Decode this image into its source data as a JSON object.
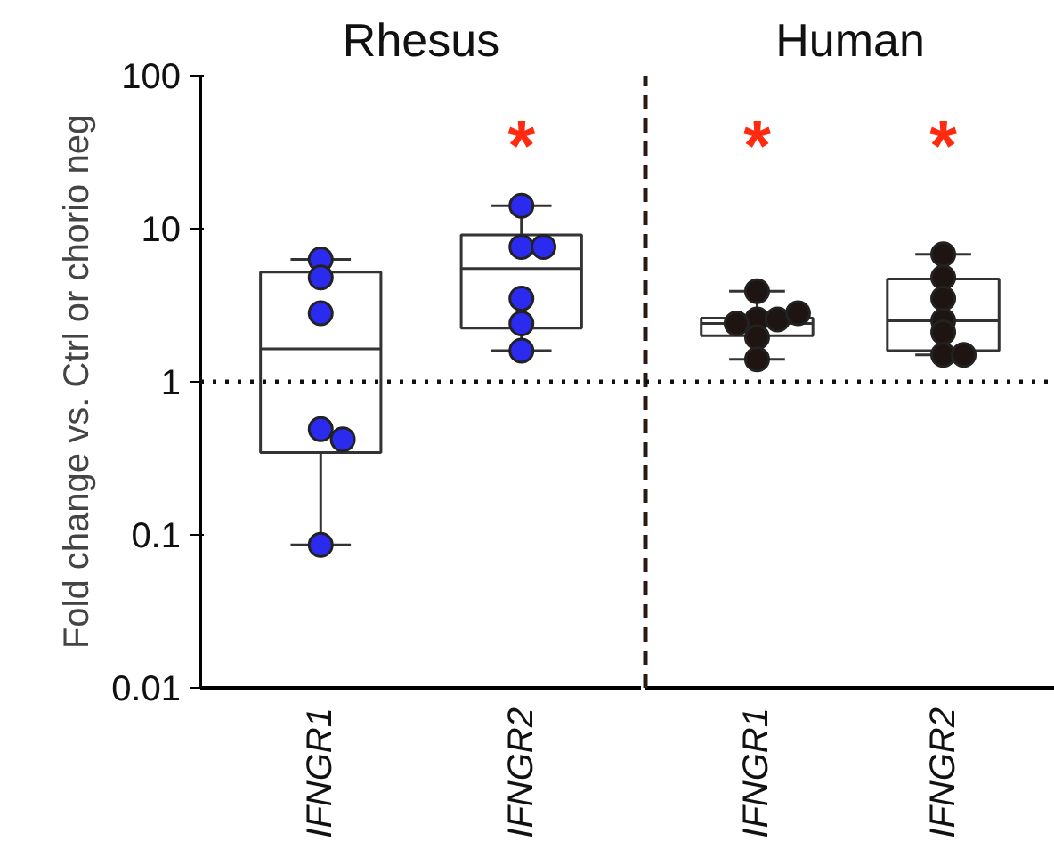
{
  "chart_data": [
    {
      "type": "box",
      "title": "Rhesus",
      "ylabel": "Fold change vs. Ctrl or chorio neg",
      "categories": [
        "IFNGR1",
        "IFNGR2"
      ],
      "boxes": [
        {
          "low": 0.086,
          "q1": 0.345,
          "median": 1.64,
          "q3": 5.2,
          "high": 6.3
        },
        {
          "low": 1.6,
          "q1": 2.24,
          "median": 5.5,
          "q3": 9.1,
          "high": 14.1
        }
      ],
      "series": [
        {
          "type": "scatter",
          "color": "#2b2bf0",
          "x": [
            "IFNGR1",
            "IFNGR1",
            "IFNGR1",
            "IFNGR1",
            "IFNGR1",
            "IFNGR1",
            "IFNGR2",
            "IFNGR2",
            "IFNGR2",
            "IFNGR2",
            "IFNGR2",
            "IFNGR2"
          ],
          "values": [
            6.3,
            4.8,
            2.8,
            0.49,
            0.42,
            0.086,
            14.1,
            7.6,
            7.6,
            3.5,
            2.4,
            1.6
          ]
        }
      ],
      "log": "y",
      "ylim": [
        0.01,
        100
      ],
      "yticks": [
        0.01,
        0.1,
        1,
        10,
        100
      ],
      "marker": "circle",
      "ref_lines": [
        {
          "axis": "y",
          "value": 1,
          "line_style": "dotted"
        }
      ],
      "annotations": [
        "*"
      ]
    },
    {
      "type": "box",
      "title": "Human",
      "categories": [
        "IFNGR1",
        "IFNGR2"
      ],
      "boxes": [
        {
          "low": 1.4,
          "q1": 2.0,
          "median": 2.4,
          "q3": 2.6,
          "high": 3.9
        },
        {
          "low": 1.5,
          "q1": 1.6,
          "median": 2.5,
          "q3": 4.7,
          "high": 6.8
        }
      ],
      "series": [
        {
          "type": "scatter",
          "color": "#1e1412",
          "x": [
            "IFNGR1",
            "IFNGR1",
            "IFNGR1",
            "IFNGR1",
            "IFNGR1",
            "IFNGR1",
            "IFNGR1",
            "IFNGR2",
            "IFNGR2",
            "IFNGR2",
            "IFNGR2",
            "IFNGR2",
            "IFNGR2",
            "IFNGR2"
          ],
          "values": [
            3.9,
            2.55,
            2.55,
            2.4,
            2.8,
            1.95,
            1.4,
            6.8,
            4.8,
            3.5,
            2.5,
            2.1,
            1.5,
            1.5
          ]
        }
      ],
      "log": "y",
      "ylim": [
        0.01,
        100
      ],
      "tick_labels": "x",
      "marker": "circle",
      "ref_lines": [
        {
          "axis": "y",
          "value": 1,
          "line_style": "dotted"
        }
      ],
      "annotations": [
        "*",
        "*"
      ]
    }
  ]
}
